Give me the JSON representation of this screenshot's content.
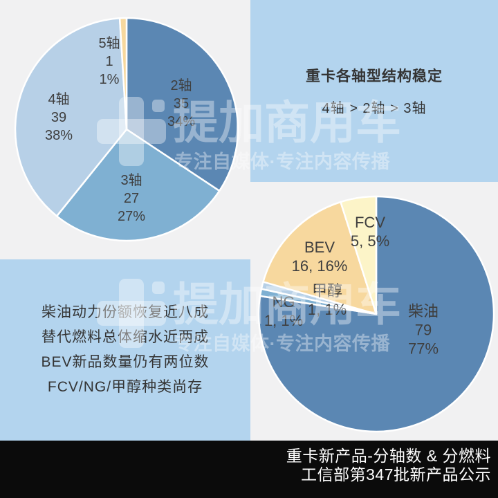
{
  "page": {
    "background": "#F1F1F2",
    "panel_color": "#B3D4EE",
    "footer_bg": "#0B0B0B",
    "label_text_color": "#3F3F3F"
  },
  "watermark": {
    "brand": "提加商用车",
    "tagline": "专注自媒体·专注内容传播"
  },
  "callout_axle": {
    "title": "重卡各轴型结构稳定",
    "subtitle": "4轴 > 2轴 > 3轴"
  },
  "callout_fuel": {
    "line1": "柴油动力份额恢复近八成",
    "line2": "替代燃料总体缩水近两成",
    "line3": "BEV新品数量仍有两位数",
    "line4": "FCV/NG/甲醇种类尚存"
  },
  "footer": {
    "line1": "重卡新产品-分轴数 & 分燃料",
    "line2": "工信部第347批新产品公示"
  },
  "chart_data": [
    {
      "type": "pie",
      "name": "heavy-truck-new-products-by-axle-count",
      "start_angle_deg": 0,
      "direction": "clockwise",
      "total": 102,
      "slices": [
        {
          "label": "2轴",
          "value": 35,
          "pct": 34,
          "color": "#5B87B3",
          "label_lines": [
            "2轴",
            "35",
            "34%"
          ]
        },
        {
          "label": "3轴",
          "value": 27,
          "pct": 27,
          "color": "#7FB0D2",
          "label_lines": [
            "3轴",
            "27",
            "27%"
          ]
        },
        {
          "label": "4轴",
          "value": 39,
          "pct": 38,
          "color": "#B7D0E7",
          "label_lines": [
            "4轴",
            "39",
            "38%"
          ]
        },
        {
          "label": "5轴",
          "value": 1,
          "pct": 1,
          "color": "#F7D89E",
          "label_lines": [
            "5轴",
            "1",
            "1%"
          ]
        }
      ]
    },
    {
      "type": "pie",
      "name": "heavy-truck-new-products-by-fuel-type",
      "start_angle_deg": 0,
      "direction": "clockwise",
      "total": 102,
      "slices": [
        {
          "label": "柴油",
          "value": 79,
          "pct": 77,
          "color": "#5B87B3",
          "label_lines": [
            "柴油",
            "79",
            "77%"
          ]
        },
        {
          "label": "NG",
          "value": 1,
          "pct": 1,
          "color": "#7FB0D2",
          "label_lines": [
            "NG",
            "1, 1%"
          ]
        },
        {
          "label": "甲醇",
          "value": 1,
          "pct": 1,
          "color": "#B7D0E7",
          "label_lines": [
            "甲醇",
            "1, 1%"
          ]
        },
        {
          "label": "BEV",
          "value": 16,
          "pct": 16,
          "color": "#F7D89E",
          "label_lines": [
            "BEV",
            "16, 16%"
          ]
        },
        {
          "label": "FCV",
          "value": 5,
          "pct": 5,
          "color": "#FCF4C8",
          "label_lines": [
            "FCV",
            "5, 5%"
          ]
        }
      ]
    }
  ]
}
